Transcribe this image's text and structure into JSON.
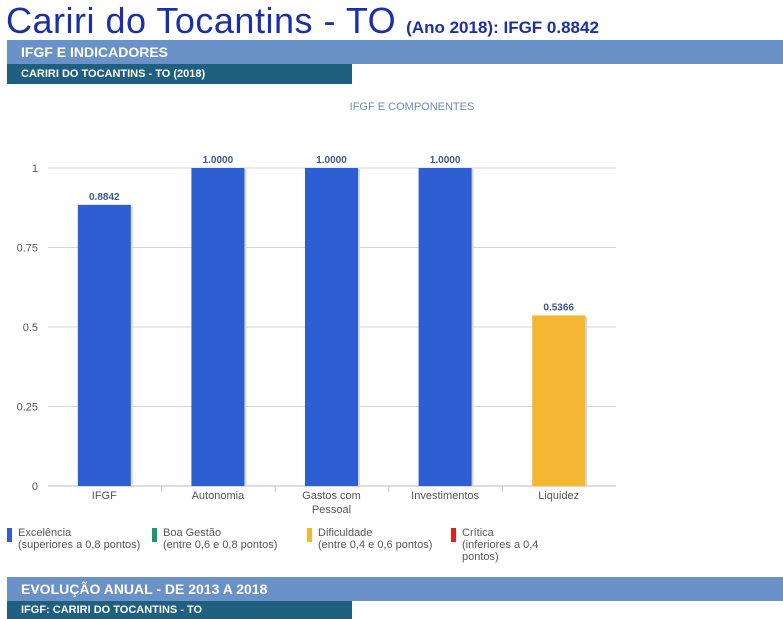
{
  "header": {
    "city": "Cariri do Tocantins - TO",
    "subtitle": "(Ano 2018): IFGF  0.8842"
  },
  "section1": {
    "band": "IFGF E INDICADORES",
    "sub": "CARIRI DO TOCANTINS - TO (2018)"
  },
  "section2": {
    "band": "EVOLUÇÃO ANUAL - DE 2013 A 2018",
    "sub": "IFGF: CARIRI DO TOCANTINS - TO"
  },
  "chart_data": {
    "type": "bar",
    "title": "IFGF E COMPONENTES",
    "categories": [
      "IFGF",
      "Autonomia",
      "Gastos com Pessoal",
      "Investimentos",
      "Liquidez"
    ],
    "values": [
      0.8842,
      1.0,
      1.0,
      1.0,
      0.5366
    ],
    "data_labels": [
      "0.8842",
      "1.0000",
      "1.0000",
      "1.0000",
      "0.5366"
    ],
    "bar_colors": [
      "#2d5fd3",
      "#2d5fd3",
      "#2d5fd3",
      "#2d5fd3",
      "#f5b731"
    ],
    "yticks": [
      "0",
      "0.25",
      "0.5",
      "0.75",
      "1"
    ],
    "ytick_values": [
      0,
      0.25,
      0.5,
      0.75,
      1
    ],
    "ylim": [
      0,
      1
    ],
    "grid": true,
    "legend_placement": "bottom"
  },
  "legend": [
    {
      "label": "Excelência",
      "desc": "(superiores a 0,8 pontos)",
      "color": "#2d5fd3"
    },
    {
      "label": "Boa Gestão",
      "desc": "(entre 0,6 e 0,8 pontos)",
      "color": "#1a9a6a"
    },
    {
      "label": "Dificuldade",
      "desc": "(entre 0,4 e 0,6 pontos)",
      "color": "#f5b731"
    },
    {
      "label": "Crítica",
      "desc": "(inferiores a 0,4 pontos)",
      "color": "#e02020"
    }
  ]
}
